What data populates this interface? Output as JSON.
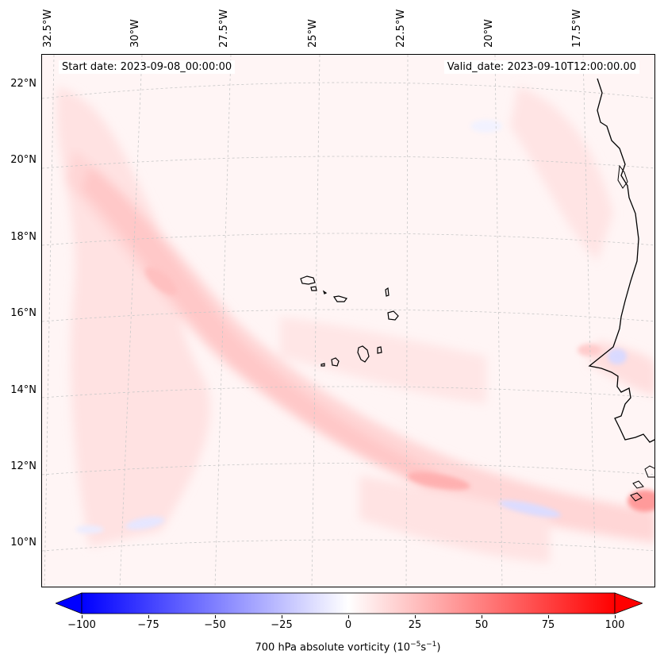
{
  "header": {
    "start_date": "Start date: 2023-09-08_00:00:00",
    "valid_date": "Valid_date: 2023-09-10T12:00:00.00"
  },
  "map": {
    "longitude_labels": [
      "32.5°W",
      "30°W",
      "27.5°W",
      "25°W",
      "22.5°W",
      "20°W",
      "17.5°W"
    ],
    "latitude_labels": [
      "22°N",
      "20°N",
      "18°N",
      "16°N",
      "14°N",
      "12°N",
      "10°N"
    ],
    "coastline_color": "#000000",
    "gridline_color": "#c8c8c8",
    "field": "700 hPa absolute vorticity"
  },
  "colorbar": {
    "label_prefix": "700 hPa absolute vorticity (10",
    "label_exp1": "−5",
    "label_mid": "s",
    "label_exp2": "−1",
    "label_suffix": ")",
    "ticks": [
      "−100",
      "−75",
      "−50",
      "−25",
      "0",
      "25",
      "50",
      "75",
      "100"
    ],
    "min": -100,
    "max": 100,
    "colormap": "bwr",
    "low_color": "#0000ff",
    "mid_color": "#ffffff",
    "high_color": "#ff0000"
  }
}
